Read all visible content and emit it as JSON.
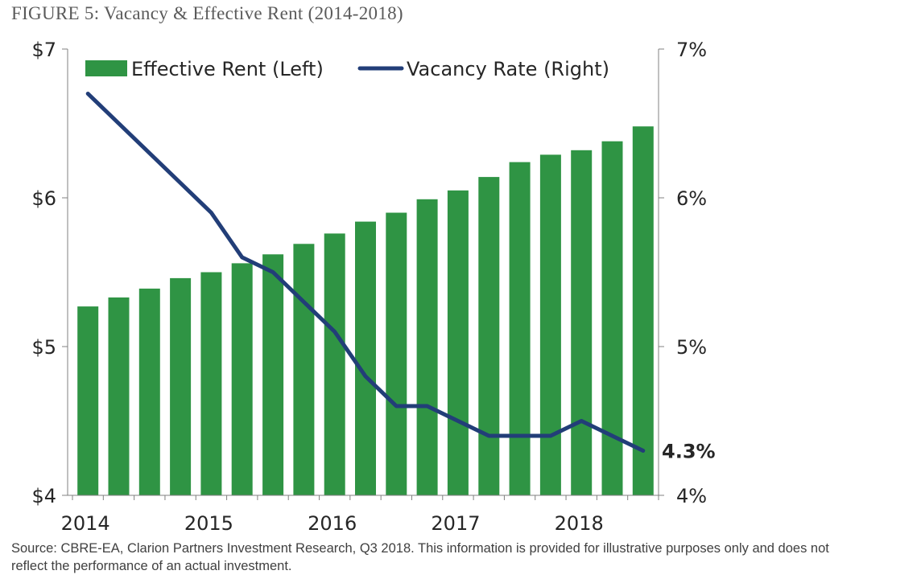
{
  "figure": {
    "title": "FIGURE 5: Vacancy & Effective Rent (2014-2018)"
  },
  "source": {
    "line1": "Source: CBRE-EA, Clarion Partners Investment Research, Q3 2018. This information is provided for illustrative purposes only and does not",
    "line2": "reflect the performance of an actual investment."
  },
  "colors": {
    "bars": "#2f9444",
    "line": "#223e78",
    "axis": "#808080",
    "text": "#262626"
  },
  "chart_data": {
    "type": "bar",
    "title": "",
    "xlabel": "",
    "ylabel": "",
    "x_tick_labels": [
      "2014",
      "2015",
      "2016",
      "2017",
      "2018"
    ],
    "x_tick_label_indices": [
      0,
      4,
      8,
      12,
      16
    ],
    "y_left": {
      "lim": [
        4,
        7
      ],
      "ticks": [
        4,
        5,
        6,
        7
      ],
      "tick_labels": [
        "$4",
        "$5",
        "$6",
        "$7"
      ]
    },
    "y_right": {
      "lim": [
        4,
        7
      ],
      "ticks": [
        4,
        5,
        6,
        7
      ],
      "tick_labels": [
        "4%",
        "5%",
        "6%",
        "7%"
      ]
    },
    "grid": false,
    "legend_position": "top",
    "series": [
      {
        "name": "Effective Rent (Left)",
        "type": "bar",
        "axis": "left",
        "values": [
          5.27,
          5.33,
          5.39,
          5.46,
          5.5,
          5.56,
          5.62,
          5.69,
          5.76,
          5.84,
          5.9,
          5.99,
          6.05,
          6.14,
          6.24,
          6.29,
          6.32,
          6.38,
          6.48
        ]
      },
      {
        "name": "Vacancy Rate (Right)",
        "type": "line",
        "axis": "right",
        "values": [
          6.7,
          6.5,
          6.3,
          6.1,
          5.9,
          5.6,
          5.5,
          5.3,
          5.1,
          4.8,
          4.6,
          4.6,
          4.5,
          4.4,
          4.4,
          4.4,
          4.5,
          4.4,
          4.3
        ]
      }
    ],
    "annotations": [
      {
        "text": "4.3%",
        "series": "Vacancy Rate (Right)",
        "index": 18
      }
    ]
  }
}
